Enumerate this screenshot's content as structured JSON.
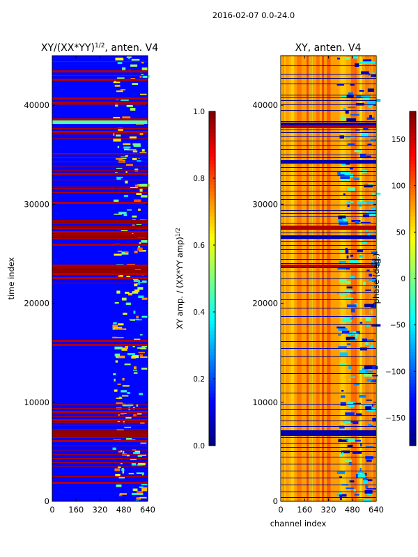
{
  "suptitle": "2016-02-07 0.0-24.0",
  "chart_data": [
    {
      "type": "heatmap",
      "title_main": "XY/(XX*YY)",
      "title_exp": "1/2",
      "title_rest": ", anten. V4",
      "ylabel": "time index",
      "xlabel": "",
      "x_range": [
        0,
        640
      ],
      "y_range": [
        0,
        45000
      ],
      "x_ticks": [
        "0",
        "160",
        "320",
        "480",
        "640"
      ],
      "x_tick_values": [
        0,
        160,
        320,
        480,
        640
      ],
      "y_ticks": [
        "0",
        "10000",
        "20000",
        "30000",
        "40000"
      ],
      "y_tick_values": [
        0,
        10000,
        20000,
        30000,
        40000
      ],
      "colorbar": {
        "label_main": "XY amp. / (XX*YY amp)",
        "label_exp": "1/2",
        "range": [
          0.0,
          1.0
        ],
        "ticks": [
          "0.0",
          "0.2",
          "0.4",
          "0.6",
          "0.8",
          "1.0"
        ],
        "tick_values": [
          0.0,
          0.2,
          0.4,
          0.6,
          0.8,
          1.0
        ],
        "colormap": "jet"
      }
    },
    {
      "type": "heatmap",
      "title": "XY, anten. V4",
      "ylabel": "",
      "xlabel": "channel index",
      "x_range": [
        0,
        640
      ],
      "y_range": [
        0,
        45000
      ],
      "x_ticks": [
        "0",
        "160",
        "320",
        "480",
        "640"
      ],
      "x_tick_values": [
        0,
        160,
        320,
        480,
        640
      ],
      "y_ticks": [
        "0",
        "10000",
        "20000",
        "30000",
        "40000"
      ],
      "y_tick_values": [
        0,
        10000,
        20000,
        30000,
        40000
      ],
      "colorbar": {
        "label": "phase (deg.)",
        "range": [
          -180,
          180
        ],
        "ticks": [
          "−150",
          "−100",
          "−50",
          "0",
          "50",
          "100",
          "150"
        ],
        "tick_values": [
          -150,
          -100,
          -50,
          0,
          50,
          100,
          150
        ],
        "colormap": "jet"
      }
    }
  ],
  "colors": {
    "jet_dark_blue": "#00007f",
    "jet_blue": "#0000ff",
    "jet_cyan": "#00ffff",
    "jet_yellow": "#ffff00",
    "jet_red": "#ff0000",
    "jet_dark_red": "#7f0000"
  }
}
